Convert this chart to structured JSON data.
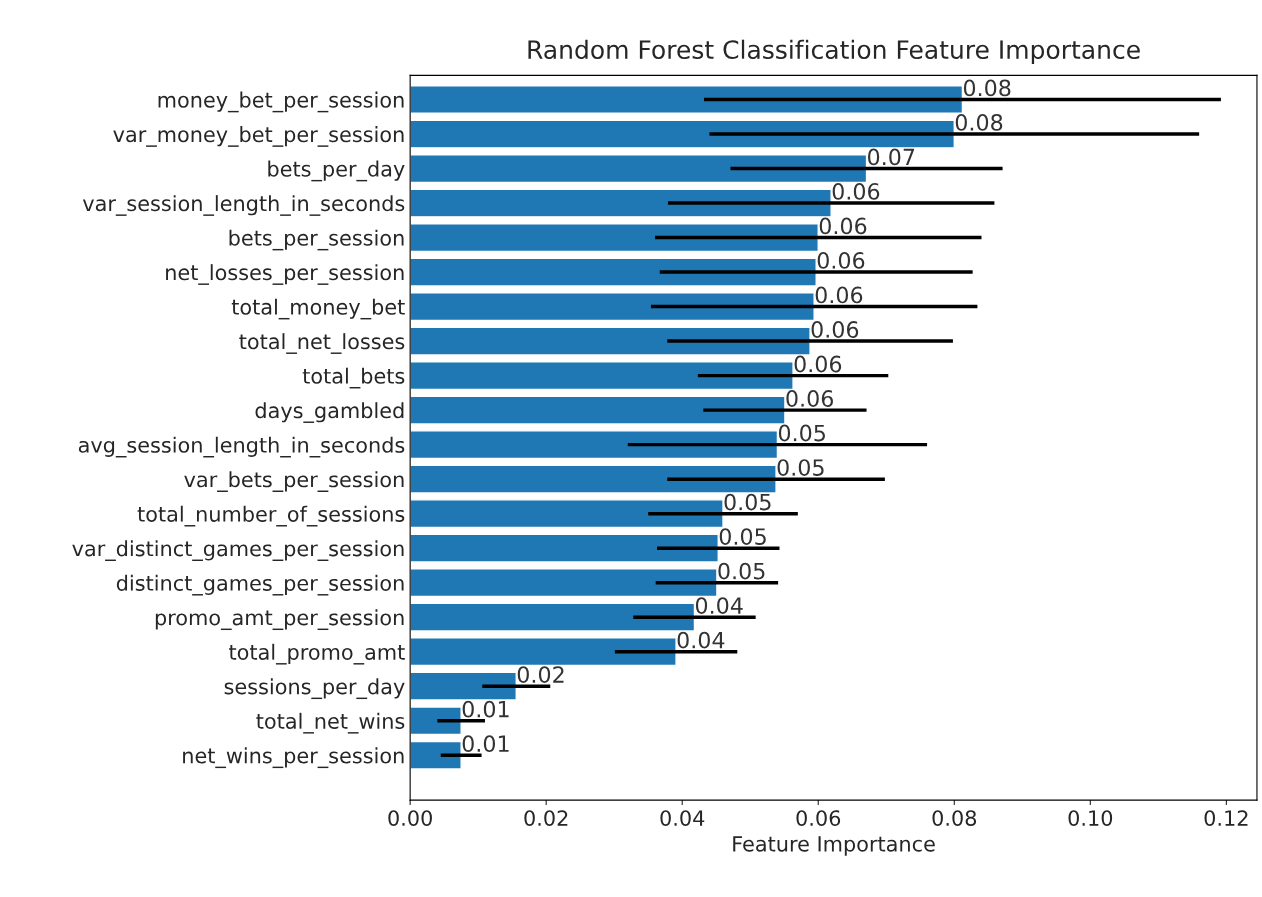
{
  "chart_data": {
    "type": "bar",
    "orientation": "horizontal",
    "title": "Random Forest Classification Feature Importance",
    "xlabel": "Feature Importance",
    "categories": [
      "money_bet_per_session",
      "var_money_bet_per_session",
      "bets_per_day",
      "var_session_length_in_seconds",
      "bets_per_session",
      "net_losses_per_session",
      "total_money_bet",
      "total_net_losses",
      "total_bets",
      "days_gambled",
      "avg_session_length_in_seconds",
      "var_bets_per_session",
      "total_number_of_sessions",
      "var_distinct_games_per_session",
      "distinct_games_per_session",
      "promo_amt_per_session",
      "total_promo_amt",
      "sessions_per_day",
      "total_net_wins",
      "net_wins_per_session"
    ],
    "values": [
      0.0812,
      0.08,
      0.0671,
      0.0619,
      0.06,
      0.0597,
      0.0594,
      0.0588,
      0.0563,
      0.0551,
      0.054,
      0.0538,
      0.046,
      0.0453,
      0.0451,
      0.0418,
      0.0391,
      0.0156,
      0.0075,
      0.0075
    ],
    "errors": [
      0.038,
      0.036,
      0.02,
      0.024,
      0.024,
      0.023,
      0.024,
      0.021,
      0.014,
      0.012,
      0.022,
      0.016,
      0.011,
      0.009,
      0.009,
      0.009,
      0.009,
      0.005,
      0.0035,
      0.003
    ],
    "value_labels": [
      "0.08",
      "0.08",
      "0.07",
      "0.06",
      "0.06",
      "0.06",
      "0.06",
      "0.06",
      "0.06",
      "0.06",
      "0.05",
      "0.05",
      "0.05",
      "0.05",
      "0.05",
      "0.04",
      "0.04",
      "0.02",
      "0.01",
      "0.01"
    ],
    "color": "#1f77b4",
    "xlim": [
      0,
      0.1245
    ],
    "xticks": [
      {
        "value": 0,
        "label": "0.00"
      },
      {
        "value": 0.02,
        "label": "0.02"
      },
      {
        "value": 0.04,
        "label": "0.04"
      },
      {
        "value": 0.06,
        "label": "0.06"
      },
      {
        "value": 0.08,
        "label": "0.08"
      },
      {
        "value": 0.1,
        "label": "0.10"
      },
      {
        "value": 0.12,
        "label": "0.12"
      }
    ],
    "grid": false,
    "legend": false
  }
}
